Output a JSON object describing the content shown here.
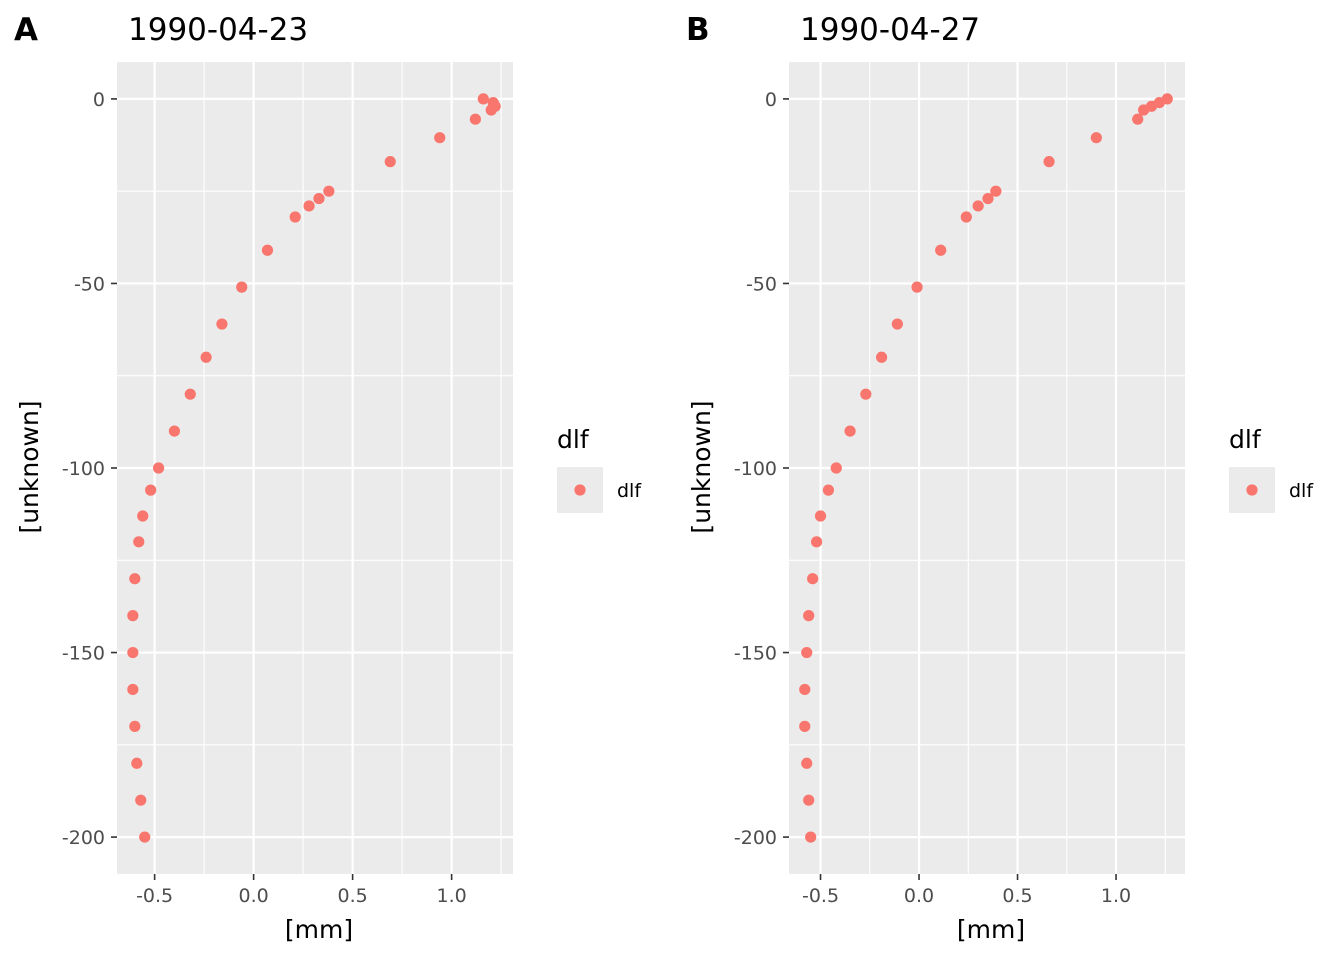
{
  "chart_data": [
    {
      "type": "scatter",
      "tag": "A",
      "title": "1990-04-23",
      "xlabel": "[mm]",
      "ylabel": "[unknown]",
      "xlim": [
        -0.69,
        1.31
      ],
      "ylim": [
        -210,
        10
      ],
      "xticks": [
        -0.5,
        0.0,
        0.5,
        1.0
      ],
      "xtick_labels": [
        "-0.5",
        "0.0",
        "0.5",
        "1.0"
      ],
      "yticks": [
        0,
        -50,
        -100,
        -150,
        -200
      ],
      "ytick_labels": [
        "0",
        "-50",
        "-100",
        "-150",
        "-200"
      ],
      "grid": true,
      "legend": {
        "title": "dlf",
        "position": "right",
        "entries": [
          "dlf"
        ]
      },
      "series": [
        {
          "name": "dlf",
          "color": "#F8766D",
          "points": [
            [
              1.16,
              0
            ],
            [
              1.21,
              -1
            ],
            [
              1.22,
              -2
            ],
            [
              1.2,
              -3
            ],
            [
              1.12,
              -5.5
            ],
            [
              0.94,
              -10.5
            ],
            [
              0.69,
              -17
            ],
            [
              0.38,
              -25
            ],
            [
              0.33,
              -27
            ],
            [
              0.28,
              -29
            ],
            [
              0.21,
              -32
            ],
            [
              0.07,
              -41
            ],
            [
              -0.06,
              -51
            ],
            [
              -0.16,
              -61
            ],
            [
              -0.24,
              -70
            ],
            [
              -0.32,
              -80
            ],
            [
              -0.4,
              -90
            ],
            [
              -0.48,
              -100
            ],
            [
              -0.52,
              -106
            ],
            [
              -0.56,
              -113
            ],
            [
              -0.58,
              -120
            ],
            [
              -0.6,
              -130
            ],
            [
              -0.61,
              -140
            ],
            [
              -0.61,
              -150
            ],
            [
              -0.61,
              -160
            ],
            [
              -0.6,
              -170
            ],
            [
              -0.59,
              -180
            ],
            [
              -0.57,
              -190
            ],
            [
              -0.55,
              -200
            ]
          ]
        }
      ]
    },
    {
      "type": "scatter",
      "tag": "B",
      "title": "1990-04-27",
      "xlabel": "[mm]",
      "ylabel": "[unknown]",
      "xlim": [
        -0.66,
        1.35
      ],
      "ylim": [
        -210,
        10
      ],
      "xticks": [
        -0.5,
        0.0,
        0.5,
        1.0
      ],
      "xtick_labels": [
        "-0.5",
        "0.0",
        "0.5",
        "1.0"
      ],
      "yticks": [
        0,
        -50,
        -100,
        -150,
        -200
      ],
      "ytick_labels": [
        "0",
        "-50",
        "-100",
        "-150",
        "-200"
      ],
      "grid": true,
      "legend": {
        "title": "dlf",
        "position": "right",
        "entries": [
          "dlf"
        ]
      },
      "series": [
        {
          "name": "dlf",
          "color": "#F8766D",
          "points": [
            [
              1.26,
              0
            ],
            [
              1.22,
              -1
            ],
            [
              1.18,
              -2
            ],
            [
              1.14,
              -3
            ],
            [
              1.11,
              -5.5
            ],
            [
              0.9,
              -10.5
            ],
            [
              0.66,
              -17
            ],
            [
              0.39,
              -25
            ],
            [
              0.35,
              -27
            ],
            [
              0.3,
              -29
            ],
            [
              0.24,
              -32
            ],
            [
              0.11,
              -41
            ],
            [
              -0.01,
              -51
            ],
            [
              -0.11,
              -61
            ],
            [
              -0.19,
              -70
            ],
            [
              -0.27,
              -80
            ],
            [
              -0.35,
              -90
            ],
            [
              -0.42,
              -100
            ],
            [
              -0.46,
              -106
            ],
            [
              -0.5,
              -113
            ],
            [
              -0.52,
              -120
            ],
            [
              -0.54,
              -130
            ],
            [
              -0.56,
              -140
            ],
            [
              -0.57,
              -150
            ],
            [
              -0.58,
              -160
            ],
            [
              -0.58,
              -170
            ],
            [
              -0.57,
              -180
            ],
            [
              -0.56,
              -190
            ],
            [
              -0.55,
              -200
            ]
          ]
        }
      ]
    }
  ]
}
